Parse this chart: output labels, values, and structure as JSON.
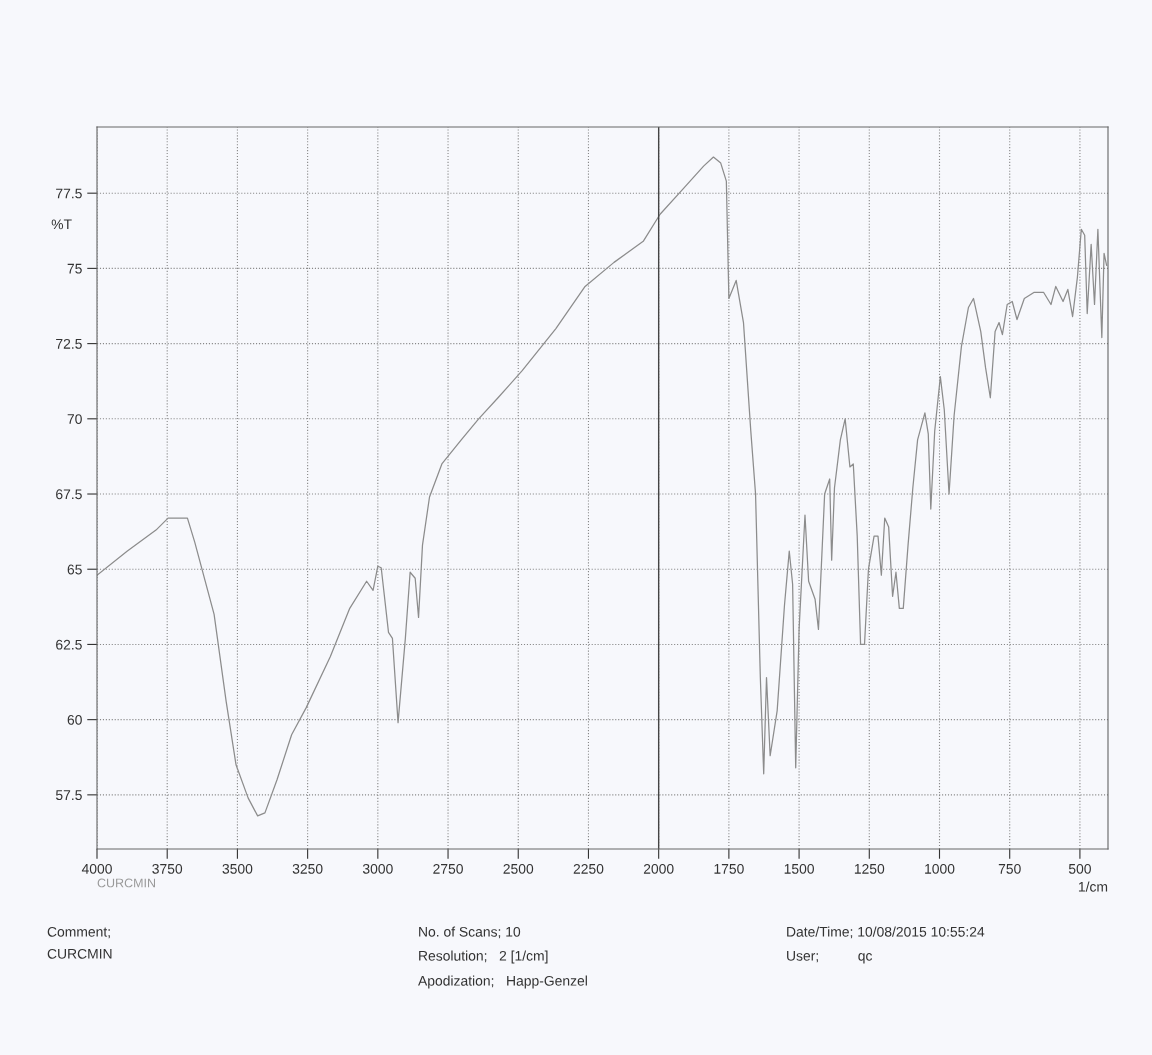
{
  "chart_data": {
    "type": "line",
    "xlabel": "1/cm",
    "ylabel": "%T",
    "x": [
      4000,
      3893,
      3790,
      3747,
      3678,
      3652,
      3583,
      3540,
      3505,
      3462,
      3428,
      3402,
      3359,
      3307,
      3255,
      3169,
      3100,
      3040,
      3017,
      3000,
      2988,
      2962,
      2948,
      2928,
      2902,
      2885,
      2867,
      2855,
      2841,
      2816,
      2772,
      2703,
      2641,
      2572,
      2486,
      2366,
      2262,
      2159,
      2055,
      1995,
      1917,
      1840,
      1805,
      1779,
      1759,
      1750,
      1724,
      1698,
      1672,
      1655,
      1638,
      1626,
      1616,
      1603,
      1578,
      1552,
      1535,
      1523,
      1512,
      1500,
      1479,
      1466,
      1443,
      1431,
      1409,
      1391,
      1384,
      1374,
      1353,
      1336,
      1319,
      1307,
      1293,
      1281,
      1267,
      1253,
      1233,
      1219,
      1207,
      1195,
      1181,
      1167,
      1155,
      1143,
      1129,
      1112,
      1095,
      1078,
      1052,
      1040,
      1031,
      1017,
      997,
      983,
      966,
      948,
      922,
      897,
      879,
      853,
      836,
      819,
      802,
      788,
      776,
      759,
      741,
      724,
      698,
      664,
      629,
      603,
      586,
      560,
      543,
      526,
      509,
      495,
      483,
      474,
      460,
      448,
      436,
      422,
      414,
      405
    ],
    "series": [
      {
        "color": "#8c8c8c",
        "values": [
          64.8,
          65.6,
          66.3,
          66.7,
          66.7,
          65.9,
          63.5,
          60.6,
          58.5,
          57.4,
          56.8,
          56.9,
          58.0,
          59.5,
          60.4,
          62.1,
          63.7,
          64.6,
          64.3,
          65.1,
          65.05,
          62.9,
          62.7,
          59.9,
          62.7,
          64.9,
          64.7,
          63.4,
          65.8,
          67.4,
          68.5,
          69.3,
          70.0,
          70.7,
          71.6,
          73.0,
          74.4,
          75.2,
          75.9,
          76.8,
          77.6,
          78.4,
          78.7,
          78.5,
          77.9,
          74.0,
          74.6,
          73.2,
          69.6,
          67.5,
          61.4,
          58.2,
          61.4,
          58.8,
          60.3,
          63.8,
          65.6,
          64.5,
          58.4,
          63.0,
          66.8,
          64.6,
          64.0,
          63.0,
          67.5,
          68.0,
          65.3,
          67.7,
          69.3,
          70.0,
          68.4,
          68.5,
          66.1,
          62.5,
          62.5,
          65.0,
          66.1,
          66.1,
          64.8,
          66.7,
          66.4,
          64.1,
          64.9,
          63.7,
          63.7,
          65.8,
          67.7,
          69.3,
          70.2,
          69.5,
          67.0,
          69.6,
          71.4,
          70.3,
          67.5,
          70.1,
          72.4,
          73.7,
          74.0,
          72.9,
          71.7,
          70.7,
          72.9,
          73.2,
          72.8,
          73.8,
          73.9,
          73.3,
          74.0,
          74.2,
          74.2,
          73.8,
          74.4,
          73.9,
          74.3,
          73.4,
          74.7,
          76.3,
          76.1,
          73.5,
          75.8,
          73.8,
          76.3,
          72.7,
          75.5,
          75.1
        ]
      }
    ],
    "xlim": [
      4000,
      400
    ],
    "xticks": [
      4000,
      3750,
      3500,
      3250,
      3000,
      2750,
      2500,
      2250,
      2000,
      1750,
      1500,
      1250,
      1000,
      750,
      500
    ],
    "ylim": [
      55.7,
      79.7
    ],
    "yticks": [
      57.5,
      60,
      62.5,
      65,
      67.5,
      70,
      72.5,
      75,
      77.5
    ],
    "grid": true,
    "line_style": "solid",
    "marker": "none",
    "ref_lines": [
      {
        "axis": "x",
        "value": 2000,
        "label": null,
        "color": "#444444",
        "line_style": "solid"
      }
    ],
    "annotations": [
      "CURCMIN",
      "Comment;",
      "CURCMIN",
      "No. of Scans; 10",
      "Resolution;   2 [1/cm]",
      "Apodization;   Happ-Genzel",
      "Date/Time; 10/08/2015 10:55:24",
      "User;          qc"
    ]
  }
}
